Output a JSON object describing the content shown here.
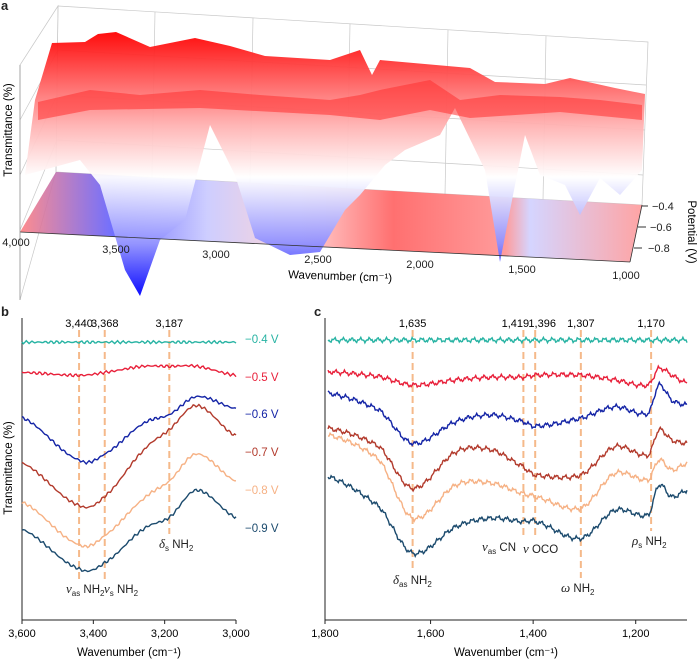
{
  "panels": {
    "a": "a",
    "b": "b",
    "c": "c"
  },
  "chart_data": [
    {
      "panel": "a",
      "type": "surface",
      "xlabel": "Wavenumber (cm⁻¹)",
      "ylabel": "Transmittance (%)",
      "zlabel": "Potential (V)",
      "xlim": [
        4000,
        1000
      ],
      "x_ticks": [
        "4,000",
        "3,500",
        "3,000",
        "2,500",
        "2,000",
        "1,500",
        "1,000"
      ],
      "z_ticks": [
        "−0.4",
        "−0.6",
        "−0.8"
      ],
      "colormap": {
        "high": "#ff0000",
        "mid": "#ffffff",
        "low": "#0000ff"
      },
      "grid": true
    },
    {
      "panel": "b",
      "type": "line",
      "xlabel": "Wavenumber (cm⁻¹)",
      "ylabel": "Transmittance (%)",
      "xlim": [
        3600,
        3000
      ],
      "x_ticks": [
        "3,600",
        "3,400",
        "3,200",
        "3,000"
      ],
      "x": [
        3600,
        3440,
        3368,
        3260,
        3187,
        3110,
        3000
      ],
      "series": [
        {
          "name": "−0.4 V",
          "color": "#27b3a3",
          "values": [
            92,
            92,
            92,
            92,
            92,
            92,
            92
          ]
        },
        {
          "name": "−0.5 V",
          "color": "#e8203a",
          "values": [
            82,
            81,
            82,
            84,
            84,
            84,
            81
          ]
        },
        {
          "name": "−0.6 V",
          "color": "#1424a6",
          "values": [
            67,
            53,
            55,
            65,
            68,
            74,
            70
          ]
        },
        {
          "name": "−0.7 V",
          "color": "#b23a2c",
          "values": [
            52,
            38,
            41,
            56,
            63,
            71,
            61
          ]
        },
        {
          "name": "−0.8 V",
          "color": "#f6b184",
          "values": [
            39,
            25,
            28,
            40,
            46,
            55,
            46
          ]
        },
        {
          "name": "−0.9 V",
          "color": "#1b4a6d",
          "values": [
            30,
            17,
            19,
            30,
            34,
            43,
            34
          ]
        }
      ],
      "peaks": [
        {
          "label": "3,440",
          "x": 3440
        },
        {
          "label": "3,368",
          "x": 3368
        },
        {
          "label": "3,187",
          "x": 3187
        }
      ],
      "assignments": [
        {
          "sym": "ν",
          "sub": "as",
          "text": " NH",
          "sub2": "2"
        },
        {
          "sym": "ν",
          "sub": "s",
          "text": " NH",
          "sub2": "2"
        },
        {
          "sym": "δ",
          "sub": "s",
          "text": " NH",
          "sub2": "2"
        }
      ],
      "marker_color": "#f5b98a"
    },
    {
      "panel": "c",
      "type": "line",
      "xlabel": "Wavenumber (cm⁻¹)",
      "xlim": [
        1800,
        1100
      ],
      "x_ticks": [
        "1,800",
        "1,600",
        "1,400",
        "1,200"
      ],
      "x": [
        1800,
        1700,
        1635,
        1550,
        1480,
        1419,
        1396,
        1307,
        1240,
        1175,
        1155,
        1130,
        1100
      ],
      "series": [
        {
          "name": "−0.4 V",
          "color": "#27b3a3",
          "values": [
            92.7,
            92.7,
            92.7,
            92.7,
            92.7,
            92.7,
            92.7,
            92.7,
            92.7,
            92.7,
            92.7,
            92.7,
            92.7
          ]
        },
        {
          "name": "−0.5 V",
          "color": "#e8203a",
          "values": [
            82.2,
            80.6,
            77.8,
            79.5,
            80.4,
            80.4,
            81.1,
            81.1,
            79.5,
            77.8,
            83.3,
            81.1,
            78.4
          ]
        },
        {
          "name": "−0.6 V",
          "color": "#1424a6",
          "values": [
            75.1,
            69.5,
            58.5,
            65.7,
            67.9,
            65.7,
            64.2,
            66.8,
            70.6,
            68.4,
            77.8,
            72.8,
            71.2
          ]
        },
        {
          "name": "−0.7 V",
          "color": "#b23a2c",
          "values": [
            63.5,
            57.4,
            43.6,
            55.7,
            56.3,
            50.8,
            48.0,
            48.0,
            57.4,
            54.6,
            62.9,
            59.6,
            58.5
          ]
        },
        {
          "name": "−0.8 V",
          "color": "#f6b184",
          "values": [
            61.3,
            53.0,
            33.7,
            44.7,
            45.3,
            41.9,
            40.8,
            37.0,
            48.6,
            46.4,
            53.0,
            49.7,
            51.9
          ]
        },
        {
          "name": "−0.9 V",
          "color": "#1b4a6d",
          "values": [
            47.5,
            37.5,
            22.1,
            30.9,
            33.7,
            32.6,
            32.6,
            27.0,
            36.4,
            34.8,
            44.7,
            40.8,
            43.0
          ]
        }
      ],
      "peaks": [
        {
          "label": "1,635",
          "x": 1635
        },
        {
          "label": "1,419",
          "x": 1419
        },
        {
          "label": "1,396",
          "x": 1396
        },
        {
          "label": "1,307",
          "x": 1307
        },
        {
          "label": "1,170",
          "x": 1170
        }
      ],
      "assignments": [
        {
          "sym": "δ",
          "sub": "as",
          "text": " NH",
          "sub2": "2"
        },
        {
          "sym": "ν",
          "sub": "as",
          "text": " CN",
          "sub2": ""
        },
        {
          "sym": "ν",
          "sub": "",
          "text": " OCO",
          "sub2": ""
        },
        {
          "sym": "ω",
          "sub": "",
          "text": " NH",
          "sub2": "2"
        },
        {
          "sym": "ρ",
          "sub": "s",
          "text": " NH",
          "sub2": "2"
        }
      ],
      "marker_color": "#f5b98a"
    }
  ]
}
